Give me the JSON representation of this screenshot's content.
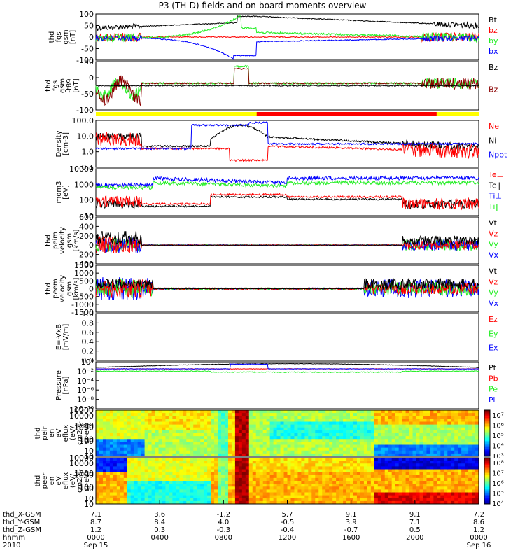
{
  "title": "P3 (TH-D) fields and on-board moments overview",
  "colors": {
    "black": "#000000",
    "red": "#ff0000",
    "green": "#22ee22",
    "blue": "#0000ff",
    "darkred": "#8b0000",
    "yellow": "#ffff00"
  },
  "chart_data": [
    {
      "type": "line",
      "ylabel": [
        "thd",
        "fgs",
        "gsm",
        "[nT]"
      ],
      "ylim": [
        -100,
        100
      ],
      "yticks": [
        "100",
        "50",
        "0",
        "-50",
        "-100"
      ],
      "series": [
        {
          "name": "Bt",
          "color": "#000000"
        },
        {
          "name": "bz",
          "color": "#ff0000"
        },
        {
          "name": "by",
          "color": "#22ee22"
        },
        {
          "name": "bx",
          "color": "#0000ff"
        }
      ]
    },
    {
      "type": "line",
      "ylabel": [
        "thd",
        "fgs",
        "gsm",
        "-t89",
        "[nT]"
      ],
      "ylim": [
        -120,
        50
      ],
      "yticks": [
        "50",
        "0",
        "-50",
        "-100"
      ],
      "series": [
        {
          "name": "Bz",
          "color": "#000000"
        },
        {
          "name": "Bz",
          "color": "#8b0000"
        }
      ]
    },
    {
      "type": "line",
      "ylabel": [
        "Density",
        "[cm-3]"
      ],
      "ylim": [
        0.1,
        100
      ],
      "log": true,
      "yticks": [
        "100.0",
        "10.0",
        "1.0",
        "0.1"
      ],
      "series": [
        {
          "name": "Ne",
          "color": "#ff0000"
        },
        {
          "name": "Ni",
          "color": "#000000"
        },
        {
          "name": "Npot",
          "color": "#0000ff"
        }
      ]
    },
    {
      "type": "line",
      "ylabel": [
        "mom3",
        "[eV]"
      ],
      "ylim": [
        10,
        10000
      ],
      "log": true,
      "yticks": [
        "10000",
        "1000",
        "100",
        "10"
      ],
      "series": [
        {
          "name": "Te⊥",
          "color": "#ff0000"
        },
        {
          "name": "Te‖",
          "color": "#000000"
        },
        {
          "name": "Ti⊥",
          "color": "#0000ff"
        },
        {
          "name": "Ti‖",
          "color": "#22ee22"
        }
      ]
    },
    {
      "type": "line",
      "ylabel": [
        "thd",
        "peim",
        "velocity",
        "gsm",
        "[km/s]"
      ],
      "ylim": [
        -400,
        600
      ],
      "yticks": [
        "600",
        "400",
        "200",
        "0",
        "-200",
        "-400"
      ],
      "series": [
        {
          "name": "Vt",
          "color": "#000000"
        },
        {
          "name": "Vz",
          "color": "#ff0000"
        },
        {
          "name": "Vy",
          "color": "#22ee22"
        },
        {
          "name": "Vx",
          "color": "#0000ff"
        }
      ]
    },
    {
      "type": "line",
      "ylabel": [
        "thd",
        "peem",
        "velocity",
        "gsm",
        "[km/s]"
      ],
      "ylim": [
        -1500,
        1500
      ],
      "yticks": [
        "1500",
        "1000",
        "500",
        "0",
        "-500",
        "-1000",
        "-1500"
      ],
      "series": [
        {
          "name": "Vt",
          "color": "#000000"
        },
        {
          "name": "Vz",
          "color": "#ff0000"
        },
        {
          "name": "Vy",
          "color": "#22ee22"
        },
        {
          "name": "Vx",
          "color": "#0000ff"
        }
      ]
    },
    {
      "type": "line",
      "ylabel": [
        "E=-VxB",
        "[mV/m]"
      ],
      "ylim": [
        0,
        1
      ],
      "yticks": [
        "1.0",
        "0.8",
        "0.6",
        "0.4",
        "0.2",
        "0.0"
      ],
      "series": [
        {
          "name": "Ez",
          "color": "#ff0000"
        },
        {
          "name": "Ey",
          "color": "#22ee22"
        },
        {
          "name": "Ex",
          "color": "#0000ff"
        }
      ]
    },
    {
      "type": "line",
      "ylabel": [
        "Pressure",
        "[nPa]"
      ],
      "ylim": [
        1e-10,
        1
      ],
      "log": true,
      "yticks": [
        "10⁰",
        "10⁻²",
        "10⁻⁴",
        "10⁻⁶",
        "10⁻⁸",
        "10⁻¹⁰"
      ],
      "series": [
        {
          "name": "Pt",
          "color": "#000000"
        },
        {
          "name": "Pb",
          "color": "#ff0000"
        },
        {
          "name": "Pe",
          "color": "#22ee22"
        },
        {
          "name": "Pi",
          "color": "#0000ff"
        }
      ]
    },
    {
      "type": "heatmap",
      "ylabel": [
        "thd",
        "peir",
        "en",
        "eV",
        "eflux",
        "(eV/",
        "cm2-s-",
        "sr-eV)"
      ],
      "yticks": [
        "10000",
        "1000",
        "100",
        "10"
      ],
      "colorbar_ticks": [
        "10⁷",
        "10⁶",
        "10⁵",
        "10⁴",
        "10³"
      ]
    },
    {
      "type": "heatmap",
      "ylabel": [
        "thd",
        "peer",
        "en",
        "eV",
        "eflux",
        "(eV/",
        "cm2-s-",
        "sr-eV)"
      ],
      "yticks": [
        "10000",
        "1000",
        "100",
        "10"
      ],
      "colorbar_ticks": [
        "10⁸",
        "10⁷",
        "10⁶",
        "10⁵",
        "10⁴"
      ]
    }
  ],
  "x_axis": {
    "row_labels": [
      "thd_X-GSM",
      "thd_Y-GSM",
      "thd_Z-GSM",
      "hhmm",
      "2010"
    ],
    "ticks": [
      {
        "X": "7.1",
        "Y": "8.7",
        "Z": "1.2",
        "hhmm": "0000",
        "date": "Sep 15"
      },
      {
        "X": "3.6",
        "Y": "8.4",
        "Z": "0.3",
        "hhmm": "0400",
        "date": ""
      },
      {
        "X": "-1.2",
        "Y": "4.0",
        "Z": "-0.3",
        "hhmm": "0800",
        "date": ""
      },
      {
        "X": "5.7",
        "Y": "-0.5",
        "Z": "-0.4",
        "hhmm": "1200",
        "date": ""
      },
      {
        "X": "9.1",
        "Y": "3.9",
        "Z": "-0.7",
        "hhmm": "1600",
        "date": ""
      },
      {
        "X": "9.1",
        "Y": "7.1",
        "Z": "0.5",
        "hhmm": "2000",
        "date": ""
      },
      {
        "X": "7.2",
        "Y": "8.6",
        "Z": "1.2",
        "hhmm": "0000",
        "date": "Sep 16"
      }
    ]
  }
}
